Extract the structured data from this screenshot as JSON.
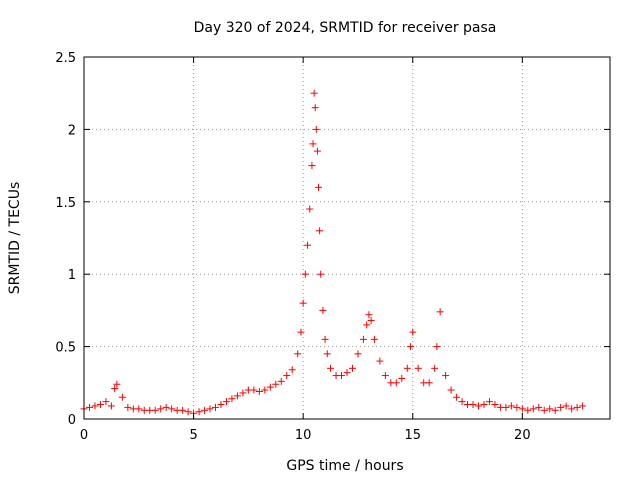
{
  "chart_data": {
    "type": "scatter",
    "title": "Day 320 of 2024, SRMTID for receiver pasa",
    "xlabel": "GPS time / hours",
    "ylabel": "SRMTID / TECUs",
    "xlim": [
      0,
      24
    ],
    "ylim": [
      0,
      2.5
    ],
    "xticks": [
      0,
      5,
      10,
      15,
      20
    ],
    "yticks": [
      0,
      0.5,
      1,
      1.5,
      2,
      2.5
    ],
    "xtick_labels": [
      "0",
      "5",
      "10",
      "15",
      "20"
    ],
    "ytick_labels": [
      "0",
      "0.5",
      "1",
      "1.5",
      "2",
      "2.5"
    ],
    "grid": true,
    "marker": "+",
    "color": "#ff0000",
    "series": [
      {
        "name": "SRMTID",
        "x": [
          0.0,
          0.25,
          0.5,
          0.75,
          1.0,
          1.25,
          1.4,
          1.5,
          1.75,
          2.0,
          2.25,
          2.5,
          2.75,
          3.0,
          3.25,
          3.5,
          3.75,
          4.0,
          4.25,
          4.5,
          4.75,
          5.0,
          5.25,
          5.5,
          5.75,
          6.0,
          6.25,
          6.5,
          6.75,
          7.0,
          7.25,
          7.5,
          7.75,
          8.0,
          8.25,
          8.5,
          8.75,
          9.0,
          9.25,
          9.5,
          9.75,
          9.9,
          10.0,
          10.1,
          10.2,
          10.3,
          10.4,
          10.45,
          10.5,
          10.55,
          10.6,
          10.65,
          10.7,
          10.75,
          10.8,
          10.9,
          11.0,
          11.1,
          11.25,
          11.5,
          11.75,
          12.0,
          12.25,
          12.5,
          12.75,
          12.9,
          13.0,
          13.1,
          13.25,
          13.5,
          13.75,
          14.0,
          14.25,
          14.5,
          14.75,
          14.9,
          15.0,
          15.25,
          15.5,
          15.75,
          16.0,
          16.1,
          16.25,
          16.5,
          16.75,
          17.0,
          17.25,
          17.5,
          17.75,
          18.0,
          18.25,
          18.5,
          18.75,
          19.0,
          19.25,
          19.5,
          19.75,
          20.0,
          20.25,
          20.5,
          20.75,
          21.0,
          21.25,
          21.5,
          21.75,
          22.0,
          22.25,
          22.5,
          22.75
        ],
        "y": [
          0.07,
          0.08,
          0.09,
          0.1,
          0.12,
          0.09,
          0.21,
          0.24,
          0.15,
          0.08,
          0.07,
          0.07,
          0.06,
          0.06,
          0.06,
          0.07,
          0.08,
          0.07,
          0.06,
          0.06,
          0.05,
          0.04,
          0.05,
          0.06,
          0.07,
          0.08,
          0.1,
          0.12,
          0.14,
          0.16,
          0.18,
          0.2,
          0.2,
          0.19,
          0.2,
          0.22,
          0.24,
          0.26,
          0.3,
          0.34,
          0.45,
          0.6,
          0.8,
          1.0,
          1.2,
          1.45,
          1.75,
          1.9,
          2.25,
          2.15,
          2.0,
          1.85,
          1.6,
          1.3,
          1.0,
          0.75,
          0.55,
          0.45,
          0.35,
          0.3,
          0.3,
          0.32,
          0.35,
          0.45,
          0.55,
          0.65,
          0.72,
          0.68,
          0.55,
          0.4,
          0.3,
          0.25,
          0.25,
          0.28,
          0.35,
          0.5,
          0.6,
          0.35,
          0.25,
          0.25,
          0.35,
          0.5,
          0.74,
          0.3,
          0.2,
          0.15,
          0.12,
          0.1,
          0.1,
          0.09,
          0.1,
          0.12,
          0.1,
          0.08,
          0.08,
          0.09,
          0.08,
          0.07,
          0.06,
          0.07,
          0.08,
          0.06,
          0.07,
          0.06,
          0.08,
          0.09,
          0.07,
          0.08,
          0.09
        ]
      }
    ]
  }
}
